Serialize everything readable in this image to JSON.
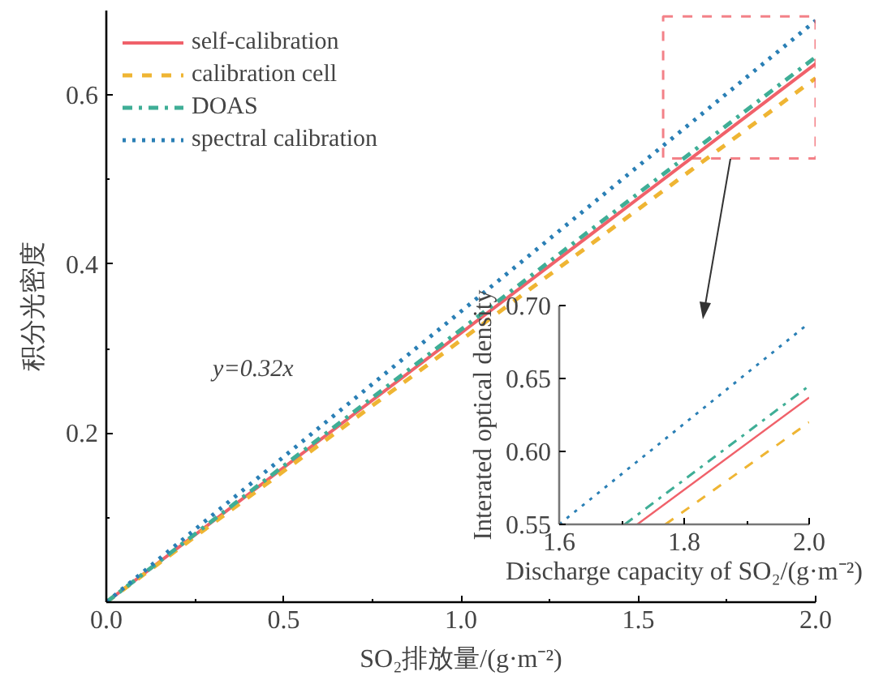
{
  "chart_data": [
    {
      "type": "line",
      "xlabel": "SO₂排放量/(g·m⁻²)",
      "ylabel": "积分光密度",
      "xlim": [
        0,
        2
      ],
      "ylim": [
        0,
        0.7
      ],
      "xticks": [
        {
          "value": 0,
          "label": "0.0"
        },
        0.5,
        {
          "value": 1,
          "label": "1.0"
        },
        1.5,
        {
          "value": 2,
          "label": "2.0"
        },
        {
          "value": 0.25,
          "label": null
        },
        {
          "value": 0.75,
          "label": null
        },
        {
          "value": 1.25,
          "label": null
        },
        {
          "value": 1.75,
          "label": null
        }
      ],
      "yticks": [
        0.2,
        0.4,
        0.6,
        {
          "value": 0.1,
          "label": null
        },
        {
          "value": 0.3,
          "label": null
        },
        {
          "value": 0.5,
          "label": null
        }
      ],
      "x": [
        0,
        2
      ],
      "grid": false,
      "legend": "top left",
      "annotations": [
        "y=0.32x"
      ],
      "series": [
        {
          "name": "self-calibration",
          "color": "#f0616a",
          "line_style": "solid",
          "values": [
            0,
            0.637
          ]
        },
        {
          "name": "calibration cell",
          "color": "#efb533",
          "line_style": "dashed",
          "values": [
            0,
            0.62
          ]
        },
        {
          "name": "DOAS",
          "color": "#3fae96",
          "line_style": "dashdot",
          "values": [
            0,
            0.645
          ]
        },
        {
          "name": "spectral calibration",
          "color": "#2a7fb5",
          "line_style": "dotted",
          "values": [
            0,
            0.688
          ]
        }
      ]
    },
    {
      "type": "line",
      "xlabel": "Discharge capacity of SO₂/(g·m⁻²)",
      "ylabel": "Interated optical density",
      "xlim": [
        1.6,
        2.0
      ],
      "ylim": [
        0.55,
        0.7
      ],
      "xticks": [
        1.6,
        1.8,
        {
          "value": 2,
          "label": "2.0"
        },
        {
          "value": 1.7,
          "label": null
        },
        {
          "value": 1.9,
          "label": null
        }
      ],
      "yticks": [
        0.55,
        {
          "value": 0.6,
          "label": "0.60"
        },
        0.65,
        {
          "value": 0.7,
          "label": "0.70"
        }
      ],
      "grid": false,
      "legend": false,
      "series": [
        {
          "color": "#f0616a",
          "line_style": "solid",
          "x": [
            1.725,
            2.0
          ],
          "values": [
            0.55,
            0.637
          ]
        },
        {
          "color": "#efb533",
          "line_style": "dashed",
          "x": [
            1.77,
            2.0
          ],
          "values": [
            0.55,
            0.62
          ]
        },
        {
          "color": "#3fae96",
          "line_style": "dashdot",
          "x": [
            1.705,
            2.0
          ],
          "values": [
            0.55,
            0.645
          ]
        },
        {
          "color": "#2a7fb5",
          "line_style": "dotted",
          "x": [
            1.6,
            2.0
          ],
          "values": [
            0.55,
            0.688
          ]
        }
      ]
    }
  ]
}
